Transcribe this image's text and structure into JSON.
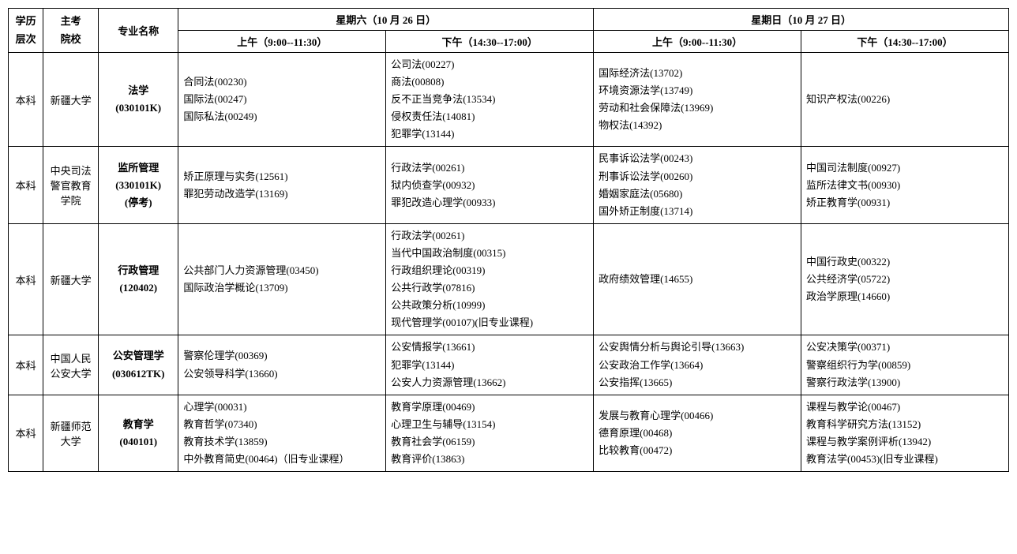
{
  "header": {
    "level": "学历\n层次",
    "school": "主考\n院校",
    "major": "专业名称",
    "day1": "星期六（10 月 26 日）",
    "day2": "星期日（10 月 27 日）",
    "sat_am": "上午（9:00--11:30）",
    "sat_pm": "下午（14:30--17:00）",
    "sun_am": "上午（9:00--11:30）",
    "sun_pm": "下午（14:30--17:00）"
  },
  "rows": [
    {
      "level": "本科",
      "school": "新疆大学",
      "major": "法学\n(030101K)",
      "sat_am": "合同法(00230)\n国际法(00247)\n国际私法(00249)",
      "sat_pm": "公司法(00227)\n商法(00808)\n反不正当竞争法(13534)\n侵权责任法(14081)\n犯罪学(13144)",
      "sun_am": "国际经济法(13702)\n环境资源法学(13749)\n劳动和社会保障法(13969)\n物权法(14392)",
      "sun_pm": "知识产权法(00226)"
    },
    {
      "level": "本科",
      "school": "中央司法警官教育学院",
      "major": "监所管理\n(330101K)\n(停考)",
      "sat_am": "矫正原理与实务(12561)\n罪犯劳动改造学(13169)",
      "sat_pm": "行政法学(00261)\n狱内侦查学(00932)\n罪犯改造心理学(00933)",
      "sun_am": "民事诉讼法学(00243)\n刑事诉讼法学(00260)\n婚姻家庭法(05680)\n国外矫正制度(13714)",
      "sun_pm": "中国司法制度(00927)\n监所法律文书(00930)\n矫正教育学(00931)"
    },
    {
      "level": "本科",
      "school": "新疆大学",
      "major": "行政管理\n(120402)",
      "sat_am": "公共部门人力资源管理(03450)\n国际政治学概论(13709)",
      "sat_pm": "行政法学(00261)\n当代中国政治制度(00315)\n行政组织理论(00319)\n公共行政学(07816)\n公共政策分析(10999)\n现代管理学(00107)(旧专业课程)",
      "sun_am": "政府绩效管理(14655)",
      "sun_pm": "中国行政史(00322)\n公共经济学(05722)\n政治学原理(14660)"
    },
    {
      "level": "本科",
      "school": "中国人民公安大学",
      "major": "公安管理学\n(030612TK)",
      "sat_am": "警察伦理学(00369)\n公安领导科学(13660)",
      "sat_pm": "公安情报学(13661)\n犯罪学(13144)\n公安人力资源管理(13662)",
      "sun_am": "公安舆情分析与舆论引导(13663)\n公安政治工作学(13664)\n公安指挥(13665)",
      "sun_pm": "公安决策学(00371)\n警察组织行为学(00859)\n警察行政法学(13900)"
    },
    {
      "level": "本科",
      "school": "新疆师范大学",
      "major": "教育学\n(040101)",
      "sat_am": "心理学(00031)\n教育哲学(07340)\n教育技术学(13859)\n中外教育简史(00464)（旧专业课程）",
      "sat_pm": "教育学原理(00469)\n心理卫生与辅导(13154)\n教育社会学(06159)\n教育评价(13863)",
      "sun_am": "发展与教育心理学(00466)\n德育原理(00468)\n比较教育(00472)",
      "sun_pm": "课程与教学论(00467)\n教育科学研究方法(13152)\n课程与教学案例评析(13942)\n教育法学(00453)(旧专业课程)"
    }
  ]
}
